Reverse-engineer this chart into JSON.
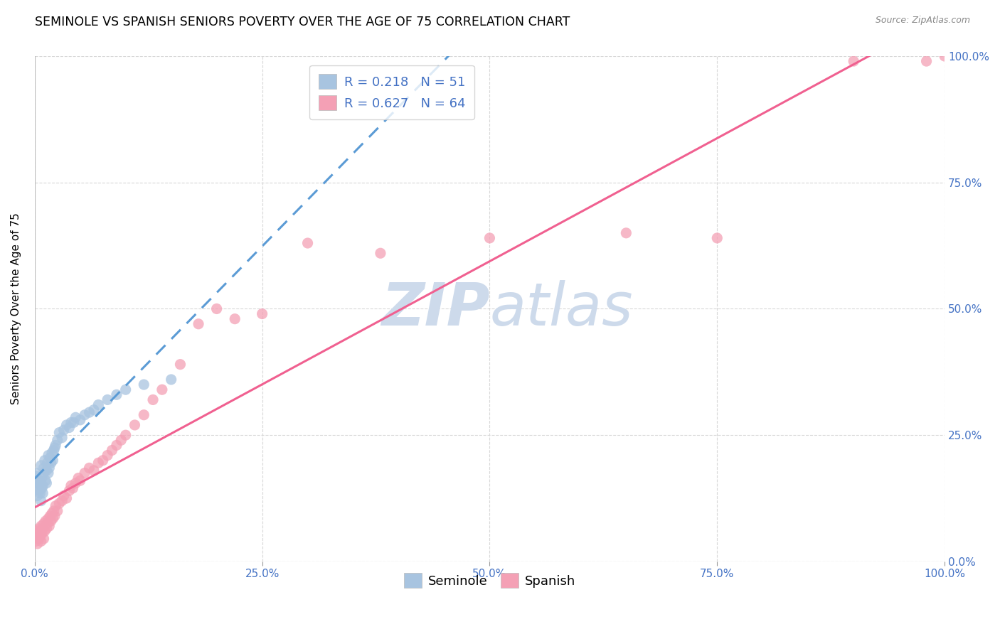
{
  "title": "SEMINOLE VS SPANISH SENIORS POVERTY OVER THE AGE OF 75 CORRELATION CHART",
  "source": "Source: ZipAtlas.com",
  "ylabel": "Seniors Poverty Over the Age of 75",
  "r_seminole": 0.218,
  "n_seminole": 51,
  "r_spanish": 0.627,
  "n_spanish": 64,
  "seminole_color": "#a8c4e0",
  "spanish_color": "#f4a0b5",
  "trend_seminole_color": "#5b9bd5",
  "trend_spanish_color": "#f06090",
  "watermark_color": "#cddaeb",
  "axis_label_color": "#4472c4",
  "xlim": [
    0,
    1
  ],
  "ylim": [
    0,
    1
  ],
  "xticks": [
    0,
    0.25,
    0.5,
    0.75,
    1.0
  ],
  "yticks": [
    0,
    0.25,
    0.5,
    0.75,
    1.0
  ],
  "xticklabels": [
    "0.0%",
    "25.0%",
    "50.0%",
    "75.0%",
    "100.0%"
  ],
  "yticklabels_right": [
    "0.0%",
    "25.0%",
    "50.0%",
    "75.0%",
    "100.0%"
  ],
  "seminole_x": [
    0.001,
    0.002,
    0.003,
    0.003,
    0.004,
    0.005,
    0.005,
    0.006,
    0.006,
    0.007,
    0.007,
    0.008,
    0.008,
    0.009,
    0.009,
    0.01,
    0.01,
    0.011,
    0.012,
    0.013,
    0.013,
    0.014,
    0.015,
    0.015,
    0.016,
    0.017,
    0.018,
    0.019,
    0.02,
    0.021,
    0.022,
    0.023,
    0.025,
    0.027,
    0.03,
    0.032,
    0.035,
    0.038,
    0.04,
    0.043,
    0.045,
    0.05,
    0.055,
    0.06,
    0.065,
    0.07,
    0.08,
    0.09,
    0.1,
    0.12,
    0.15
  ],
  "seminole_y": [
    0.175,
    0.168,
    0.13,
    0.155,
    0.15,
    0.14,
    0.16,
    0.135,
    0.155,
    0.12,
    0.19,
    0.145,
    0.165,
    0.135,
    0.15,
    0.175,
    0.185,
    0.2,
    0.16,
    0.18,
    0.155,
    0.195,
    0.175,
    0.21,
    0.185,
    0.205,
    0.195,
    0.215,
    0.2,
    0.22,
    0.225,
    0.23,
    0.24,
    0.255,
    0.245,
    0.26,
    0.27,
    0.265,
    0.275,
    0.275,
    0.285,
    0.28,
    0.29,
    0.295,
    0.3,
    0.31,
    0.32,
    0.33,
    0.34,
    0.35,
    0.36
  ],
  "spanish_x": [
    0.001,
    0.002,
    0.003,
    0.004,
    0.005,
    0.005,
    0.006,
    0.007,
    0.007,
    0.008,
    0.009,
    0.01,
    0.01,
    0.011,
    0.012,
    0.013,
    0.014,
    0.015,
    0.016,
    0.017,
    0.018,
    0.019,
    0.02,
    0.021,
    0.022,
    0.023,
    0.025,
    0.027,
    0.03,
    0.032,
    0.035,
    0.038,
    0.04,
    0.042,
    0.045,
    0.048,
    0.05,
    0.055,
    0.06,
    0.065,
    0.07,
    0.075,
    0.08,
    0.085,
    0.09,
    0.095,
    0.1,
    0.11,
    0.12,
    0.13,
    0.14,
    0.16,
    0.18,
    0.2,
    0.22,
    0.25,
    0.3,
    0.38,
    0.5,
    0.65,
    0.75,
    0.9,
    0.98,
    1.0
  ],
  "spanish_y": [
    0.04,
    0.055,
    0.035,
    0.06,
    0.045,
    0.065,
    0.05,
    0.04,
    0.07,
    0.055,
    0.065,
    0.045,
    0.075,
    0.06,
    0.08,
    0.065,
    0.075,
    0.085,
    0.07,
    0.09,
    0.08,
    0.095,
    0.085,
    0.1,
    0.09,
    0.11,
    0.1,
    0.115,
    0.12,
    0.13,
    0.125,
    0.14,
    0.15,
    0.145,
    0.155,
    0.165,
    0.16,
    0.175,
    0.185,
    0.18,
    0.195,
    0.2,
    0.21,
    0.22,
    0.23,
    0.24,
    0.25,
    0.27,
    0.29,
    0.32,
    0.34,
    0.39,
    0.47,
    0.5,
    0.48,
    0.49,
    0.63,
    0.61,
    0.64,
    0.65,
    0.64,
    0.99,
    0.99,
    1.0
  ],
  "background_color": "#ffffff",
  "grid_color": "#d8d8d8",
  "title_fontsize": 12.5,
  "label_fontsize": 11,
  "tick_fontsize": 11,
  "legend_fontsize": 13
}
